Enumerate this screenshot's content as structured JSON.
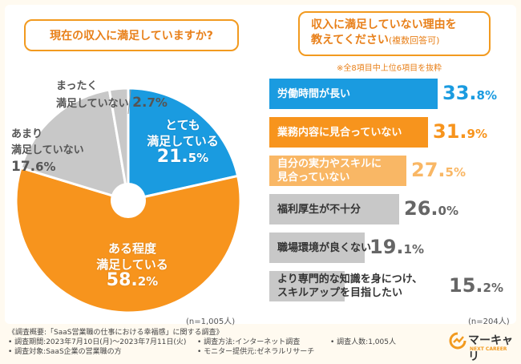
{
  "left_title": "現在の収入に満足していますか?",
  "right_title_line1": "収入に満足していない理由を",
  "right_title_line2": "教えてください",
  "right_title_note": "(複数回答可)",
  "right_note": "※全8項目中上位6項目を抜粋",
  "left_n": "(n=1,005人)",
  "right_n": "(n=204人)",
  "colors": {
    "accent": "#f29a1f",
    "blue": "#1a9be0",
    "orange": "#f7941d",
    "light_orange": "#f9b765",
    "gray": "#c8c8c8"
  },
  "chart_data": [
    {
      "type": "pie",
      "title": "現在の収入に満足していますか?",
      "slices": [
        {
          "label_lines": [
            "とても",
            "満足している"
          ],
          "pct_main": "21.",
          "pct_tail": "5%",
          "value": 21.5
        },
        {
          "label_lines": [
            "ある程度",
            "満足している"
          ],
          "pct_main": "58.",
          "pct_tail": "2%",
          "value": 58.2
        },
        {
          "label_lines": [
            "あまり",
            "満足していない"
          ],
          "pct_main": "17.",
          "pct_tail": "6%",
          "value": 17.6
        },
        {
          "label_lines": [
            "まったく",
            "満足していない"
          ],
          "pct_main": "2.",
          "pct_tail": "7%",
          "value": 2.7
        }
      ]
    },
    {
      "type": "bar",
      "title": "収入に満足していない理由を教えてください(複数回答可)",
      "bars": [
        {
          "label_lines": [
            "労働時間が長い"
          ],
          "pct_main": "33.",
          "pct_tail": "8%",
          "value": 33.8
        },
        {
          "label_lines": [
            "業務内容に見合っていない"
          ],
          "pct_main": "31.",
          "pct_tail": "9%",
          "value": 31.9
        },
        {
          "label_lines": [
            "自分の実力やスキルに",
            "見合っていない"
          ],
          "pct_main": "27.",
          "pct_tail": "5%",
          "value": 27.5
        },
        {
          "label_lines": [
            "福利厚生が不十分"
          ],
          "pct_main": "26.",
          "pct_tail": "0%",
          "value": 26.0
        },
        {
          "label_lines": [
            "職場環境が良くない"
          ],
          "pct_main": "19.",
          "pct_tail": "1%",
          "value": 19.1
        },
        {
          "label_lines": [
            "より専門的な知識を身につけ、",
            "スキルアップを目指したい"
          ],
          "pct_main": "15.",
          "pct_tail": "2%",
          "value": 15.2
        }
      ]
    }
  ],
  "footer": {
    "title": "《調査概要:「SaaS営業職の仕事における幸福感」に関する調査》",
    "period": "• 調査期間:2023年7月10日(月)〜2023年7月11日(火)",
    "target": "• 調査対象:SaaS企業の営業職の方",
    "method": "• 調査方法:インターネット調査",
    "monitor": "• モニター提供元:ゼネラルリサーチ",
    "count": "• 調査人数:1,005人"
  },
  "logo": {
    "name": "マーキャリ",
    "sub": "NEXT CAREER"
  }
}
